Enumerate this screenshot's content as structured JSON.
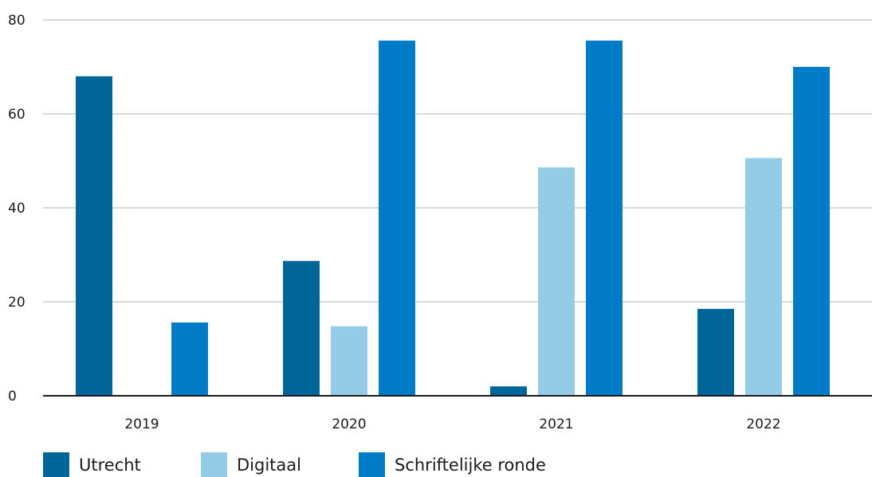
{
  "chart_data": {
    "type": "bar",
    "title": "",
    "xlabel": "",
    "ylabel": "",
    "categories": [
      "2019",
      "2020",
      "2021",
      "2022"
    ],
    "ylim": [
      0,
      80
    ],
    "yticks": [
      "0",
      "20",
      "40",
      "60",
      "80"
    ],
    "grid": true,
    "legend_position": "bottom-left",
    "series": [
      {
        "name": "Utrecht",
        "color": "#006699",
        "values": [
          68,
          28.7,
          2,
          18.5
        ]
      },
      {
        "name": "Digitaal",
        "color": "#94cbe6",
        "values": [
          0,
          14.8,
          48.6,
          50.6
        ]
      },
      {
        "name": "Schriftelijke ronde",
        "color": "#007bc7",
        "values": [
          15.6,
          75.6,
          75.6,
          70
        ]
      }
    ]
  }
}
